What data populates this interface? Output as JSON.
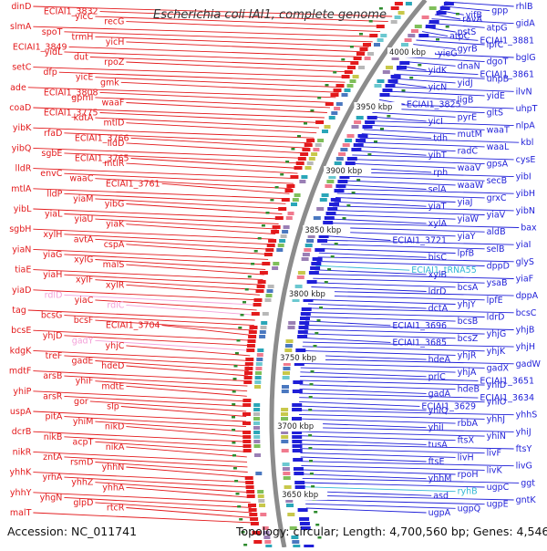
{
  "title": "Escherichia coli IAI1, complete genome",
  "footer": {
    "accession": "Accession: NC_011741",
    "summary": "Topology: circular; Length: 4,700,560 bp; Genes: 4,546"
  },
  "colors": {
    "left_strand": "#e31a1c",
    "right_strand": "#1f1fd8",
    "pseudo_left": "#f4a0d8",
    "rna_right": "#33b7d6",
    "backbone": "#8c8c8c",
    "tick": "#2e8b2e"
  },
  "kbp_marks": [
    "4000 kbp",
    "3950 kbp",
    "3900 kbp",
    "3850 kbp",
    "3800 kbp",
    "3750 kbp",
    "3700 kbp",
    "3650 kbp"
  ],
  "left_labels": [
    {
      "t": "dinD",
      "c": "red"
    },
    {
      "t": "ECIAI1_3832",
      "c": "red"
    },
    {
      "t": "yicC",
      "c": "red"
    },
    {
      "t": "recG",
      "c": "red"
    },
    {
      "t": "slmA",
      "c": "red"
    },
    {
      "t": "spoT",
      "c": "red"
    },
    {
      "t": "trmH",
      "c": "red"
    },
    {
      "t": "yicH",
      "c": "red"
    },
    {
      "t": "ECIAI1_3849",
      "c": "red"
    },
    {
      "t": "yidL",
      "c": "red"
    },
    {
      "t": "dut",
      "c": "red"
    },
    {
      "t": "rpoZ",
      "c": "red"
    },
    {
      "t": "setC",
      "c": "red"
    },
    {
      "t": "dfp",
      "c": "red"
    },
    {
      "t": "yicE",
      "c": "red"
    },
    {
      "t": "gmk",
      "c": "red"
    },
    {
      "t": "ade",
      "c": "red"
    },
    {
      "t": "ECIAI1_3808",
      "c": "red"
    },
    {
      "t": "gpmI",
      "c": "red"
    },
    {
      "t": "waaF",
      "c": "red"
    },
    {
      "t": "coaD",
      "c": "red"
    },
    {
      "t": "ECIAI1_3775",
      "c": "red"
    },
    {
      "t": "kdtA",
      "c": "red"
    },
    {
      "t": "mtlD",
      "c": "red"
    },
    {
      "t": "yibK",
      "c": "red"
    },
    {
      "t": "rfaD",
      "c": "red"
    },
    {
      "t": "ECIAI1_3766",
      "c": "red"
    },
    {
      "t": "lldD",
      "c": "red"
    },
    {
      "t": "yibQ",
      "c": "red"
    },
    {
      "t": "sgbE",
      "c": "red"
    },
    {
      "t": "ECIAI1_3765",
      "c": "red"
    },
    {
      "t": "mtlR",
      "c": "red"
    },
    {
      "t": "lldR",
      "c": "red"
    },
    {
      "t": "envC",
      "c": "red"
    },
    {
      "t": "waaC",
      "c": "red"
    },
    {
      "t": "ECIAI1_3761",
      "c": "red"
    },
    {
      "t": "mtlA",
      "c": "red"
    },
    {
      "t": "lldP",
      "c": "red"
    },
    {
      "t": "yiaM",
      "c": "red"
    },
    {
      "t": "yibG",
      "c": "red"
    },
    {
      "t": "yibL",
      "c": "red"
    },
    {
      "t": "yiaL",
      "c": "red"
    },
    {
      "t": "yiaU",
      "c": "red"
    },
    {
      "t": "yiaK",
      "c": "red"
    },
    {
      "t": "sgbH",
      "c": "red"
    },
    {
      "t": "xylH",
      "c": "red"
    },
    {
      "t": "avtA",
      "c": "red"
    },
    {
      "t": "cspA",
      "c": "red"
    },
    {
      "t": "yiaN",
      "c": "red"
    },
    {
      "t": "yiaG",
      "c": "red"
    },
    {
      "t": "xylG",
      "c": "red"
    },
    {
      "t": "malS",
      "c": "red"
    },
    {
      "t": "tiaE",
      "c": "red"
    },
    {
      "t": "yiaH",
      "c": "red"
    },
    {
      "t": "xylF",
      "c": "red"
    },
    {
      "t": "xylR",
      "c": "red"
    },
    {
      "t": "yiaD",
      "c": "red"
    },
    {
      "t": "rdlD",
      "c": "pink"
    },
    {
      "t": "yiaC",
      "c": "red"
    },
    {
      "t": "rdlC",
      "c": "pink"
    },
    {
      "t": "tag",
      "c": "red"
    },
    {
      "t": "bcsG",
      "c": "red"
    },
    {
      "t": "bcsF",
      "c": "red"
    },
    {
      "t": "ECIAI1_3704",
      "c": "red"
    },
    {
      "t": "bcsE",
      "c": "red"
    },
    {
      "t": "yhjD",
      "c": "red"
    },
    {
      "t": "gadY",
      "c": "pink"
    },
    {
      "t": "yhjC",
      "c": "red"
    },
    {
      "t": "kdgK",
      "c": "red"
    },
    {
      "t": "treF",
      "c": "red"
    },
    {
      "t": "gadE",
      "c": "red"
    },
    {
      "t": "hdeD",
      "c": "red"
    },
    {
      "t": "mdtF",
      "c": "red"
    },
    {
      "t": "arsB",
      "c": "red"
    },
    {
      "t": "yhiF",
      "c": "red"
    },
    {
      "t": "mdtE",
      "c": "red"
    },
    {
      "t": "yhiP",
      "c": "red"
    },
    {
      "t": "arsR",
      "c": "red"
    },
    {
      "t": "gor",
      "c": "red"
    },
    {
      "t": "slp",
      "c": "red"
    },
    {
      "t": "uspA",
      "c": "red"
    },
    {
      "t": "pitA",
      "c": "red"
    },
    {
      "t": "yhiM",
      "c": "red"
    },
    {
      "t": "nikD",
      "c": "red"
    },
    {
      "t": "dcrB",
      "c": "red"
    },
    {
      "t": "nikB",
      "c": "red"
    },
    {
      "t": "acpT",
      "c": "red"
    },
    {
      "t": "nikA",
      "c": "red"
    },
    {
      "t": "nikR",
      "c": "red"
    },
    {
      "t": "zntA",
      "c": "red"
    },
    {
      "t": "rsmD",
      "c": "red"
    },
    {
      "t": "yhhN",
      "c": "red"
    },
    {
      "t": "yhhK",
      "c": "red"
    },
    {
      "t": "yrhA",
      "c": "red"
    },
    {
      "t": "yhhZ",
      "c": "red"
    },
    {
      "t": "yhhA",
      "c": "red"
    },
    {
      "t": "yhhY",
      "c": "red"
    },
    {
      "t": "yhgN",
      "c": "red"
    },
    {
      "t": "glpD",
      "c": "red"
    },
    {
      "t": "rtcR",
      "c": "red"
    },
    {
      "t": "malT",
      "c": "red"
    }
  ],
  "right_labels": [
    {
      "t": "rhlB",
      "c": "blue"
    },
    {
      "t": "gpp",
      "c": "blue"
    },
    {
      "t": "yifB",
      "c": "blue"
    },
    {
      "t": "ravA",
      "c": "blue"
    },
    {
      "t": "gidA",
      "c": "blue"
    },
    {
      "t": "atpG",
      "c": "blue"
    },
    {
      "t": "pstS",
      "c": "blue"
    },
    {
      "t": "atpC",
      "c": "blue"
    },
    {
      "t": "ECIAI1_3881",
      "c": "blue"
    },
    {
      "t": "lpfC",
      "c": "blue"
    },
    {
      "t": "gyrB",
      "c": "blue"
    },
    {
      "t": "yieG",
      "c": "blue"
    },
    {
      "t": "bglG",
      "c": "blue"
    },
    {
      "t": "dgoT",
      "c": "blue"
    },
    {
      "t": "dnaN",
      "c": "blue"
    },
    {
      "t": "yidK",
      "c": "blue"
    },
    {
      "t": "ECIAI1_3861",
      "c": "blue"
    },
    {
      "t": "uhpB",
      "c": "blue"
    },
    {
      "t": "yidJ",
      "c": "blue"
    },
    {
      "t": "yicN",
      "c": "blue"
    },
    {
      "t": "ilvN",
      "c": "blue"
    },
    {
      "t": "yidE",
      "c": "blue"
    },
    {
      "t": "ligB",
      "c": "blue"
    },
    {
      "t": "ECIAI1_3825",
      "c": "blue"
    },
    {
      "t": "uhpT",
      "c": "blue"
    },
    {
      "t": "gltS",
      "c": "blue"
    },
    {
      "t": "pyrE",
      "c": "blue"
    },
    {
      "t": "yicI",
      "c": "blue"
    },
    {
      "t": "nlpA",
      "c": "blue"
    },
    {
      "t": "waaT",
      "c": "blue"
    },
    {
      "t": "mutM",
      "c": "blue"
    },
    {
      "t": "tdh",
      "c": "blue"
    },
    {
      "t": "kbl",
      "c": "blue"
    },
    {
      "t": "waaL",
      "c": "blue"
    },
    {
      "t": "radC",
      "c": "blue"
    },
    {
      "t": "yibT",
      "c": "blue"
    },
    {
      "t": "cysE",
      "c": "blue"
    },
    {
      "t": "gpsA",
      "c": "blue"
    },
    {
      "t": "waaV",
      "c": "blue"
    },
    {
      "t": "rph",
      "c": "blue"
    },
    {
      "t": "yibI",
      "c": "blue"
    },
    {
      "t": "secB",
      "c": "blue"
    },
    {
      "t": "waaW",
      "c": "blue"
    },
    {
      "t": "selA",
      "c": "blue"
    },
    {
      "t": "yibH",
      "c": "blue"
    },
    {
      "t": "grxC",
      "c": "blue"
    },
    {
      "t": "yiaJ",
      "c": "blue"
    },
    {
      "t": "yiaT",
      "c": "blue"
    },
    {
      "t": "yibN",
      "c": "blue"
    },
    {
      "t": "yiaV",
      "c": "blue"
    },
    {
      "t": "yiaW",
      "c": "blue"
    },
    {
      "t": "xylA",
      "c": "blue"
    },
    {
      "t": "bax",
      "c": "blue"
    },
    {
      "t": "aldB",
      "c": "blue"
    },
    {
      "t": "yiaY",
      "c": "blue"
    },
    {
      "t": "ECIAI1_3721",
      "c": "blue"
    },
    {
      "t": "yiaI",
      "c": "blue"
    },
    {
      "t": "selB",
      "c": "blue"
    },
    {
      "t": "lpfB",
      "c": "blue"
    },
    {
      "t": "bisC",
      "c": "blue"
    },
    {
      "t": "glyS",
      "c": "blue"
    },
    {
      "t": "dppD",
      "c": "blue"
    },
    {
      "t": "ECIAI1_tRNA55",
      "c": "cyan"
    },
    {
      "t": "xylB",
      "c": "blue"
    },
    {
      "t": "yiaF",
      "c": "blue"
    },
    {
      "t": "ysaB",
      "c": "blue"
    },
    {
      "t": "bcsA",
      "c": "blue"
    },
    {
      "t": "ldrD",
      "c": "blue"
    },
    {
      "t": "dppA",
      "c": "blue"
    },
    {
      "t": "lpfE",
      "c": "blue"
    },
    {
      "t": "yhjY",
      "c": "blue"
    },
    {
      "t": "dctA",
      "c": "blue"
    },
    {
      "t": "bcsC",
      "c": "blue"
    },
    {
      "t": "ldrD",
      "c": "blue"
    },
    {
      "t": "bcsB",
      "c": "blue"
    },
    {
      "t": "ECIAI1_3696",
      "c": "blue"
    },
    {
      "t": "yhjB",
      "c": "blue"
    },
    {
      "t": "yhjG",
      "c": "blue"
    },
    {
      "t": "bcsZ",
      "c": "blue"
    },
    {
      "t": "ECIAI1_3685",
      "c": "blue"
    },
    {
      "t": "yhjH",
      "c": "blue"
    },
    {
      "t": "yhjK",
      "c": "blue"
    },
    {
      "t": "yhjR",
      "c": "blue"
    },
    {
      "t": "hdeA",
      "c": "blue"
    },
    {
      "t": "gadW",
      "c": "blue"
    },
    {
      "t": "gadX",
      "c": "blue"
    },
    {
      "t": "yhjA",
      "c": "blue"
    },
    {
      "t": "prlC",
      "c": "blue"
    },
    {
      "t": "ECIAI1_3651",
      "c": "blue"
    },
    {
      "t": "yhiD",
      "c": "blue"
    },
    {
      "t": "hdeB",
      "c": "blue"
    },
    {
      "t": "gadA",
      "c": "blue"
    },
    {
      "t": "ECIAI1_3634",
      "c": "blue"
    },
    {
      "t": "yhiO",
      "c": "blue"
    },
    {
      "t": "ECIAI1_3629",
      "c": "blue"
    },
    {
      "t": "yhiQ",
      "c": "blue"
    },
    {
      "t": "yhhS",
      "c": "blue"
    },
    {
      "t": "yhhJ",
      "c": "blue"
    },
    {
      "t": "rbbA",
      "c": "blue"
    },
    {
      "t": "yhiI",
      "c": "blue"
    },
    {
      "t": "yhiJ",
      "c": "blue"
    },
    {
      "t": "yhiN",
      "c": "blue"
    },
    {
      "t": "ftsX",
      "c": "blue"
    },
    {
      "t": "tusA",
      "c": "blue"
    },
    {
      "t": "ftsY",
      "c": "blue"
    },
    {
      "t": "livF",
      "c": "blue"
    },
    {
      "t": "livH",
      "c": "blue"
    },
    {
      "t": "ftsE",
      "c": "blue"
    },
    {
      "t": "livG",
      "c": "blue"
    },
    {
      "t": "livK",
      "c": "blue"
    },
    {
      "t": "rpoH",
      "c": "blue"
    },
    {
      "t": "yhhM",
      "c": "blue"
    },
    {
      "t": "ggt",
      "c": "blue"
    },
    {
      "t": "ugpC",
      "c": "blue"
    },
    {
      "t": "ryhB",
      "c": "cyan"
    },
    {
      "t": "asd",
      "c": "blue"
    },
    {
      "t": "gntK",
      "c": "blue"
    },
    {
      "t": "ugpE",
      "c": "blue"
    },
    {
      "t": "ugpQ",
      "c": "blue"
    },
    {
      "t": "ugpA",
      "c": "blue"
    }
  ]
}
